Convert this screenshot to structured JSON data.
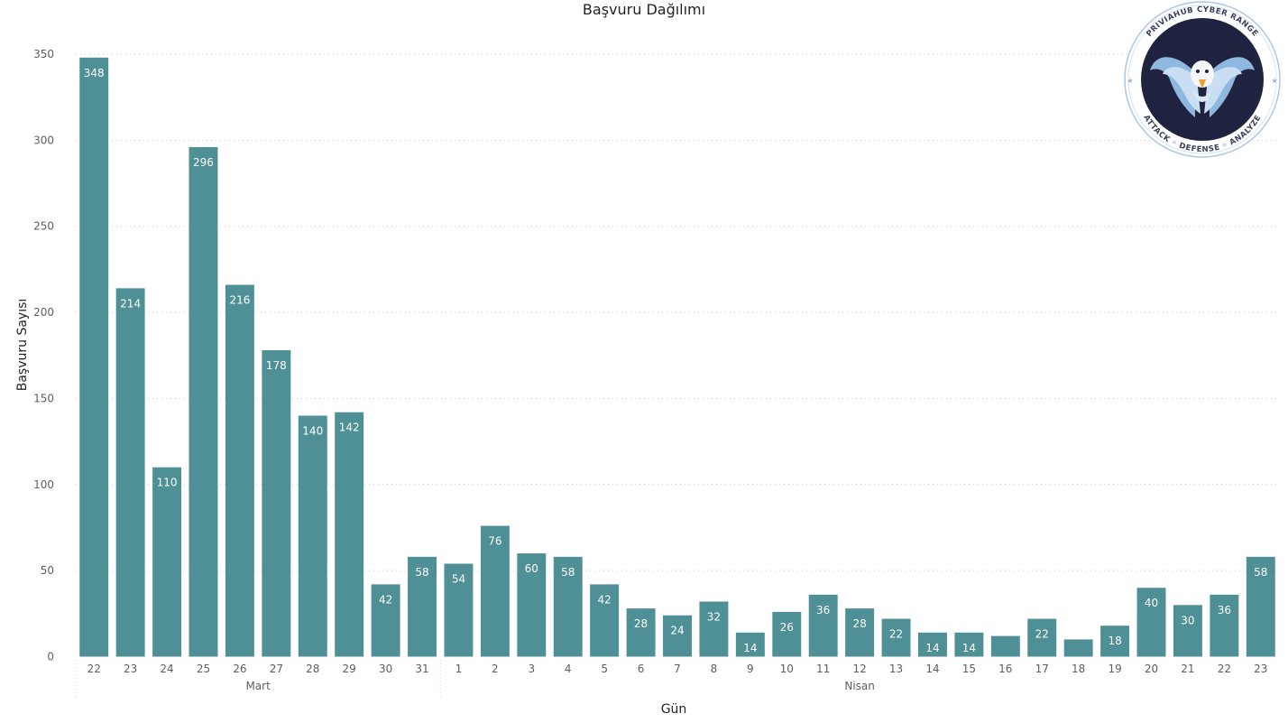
{
  "chart_data": {
    "type": "bar",
    "title": "Başvuru Dağılımı",
    "xlabel": "Gün",
    "ylabel": "Başvuru Sayısı",
    "ylim": [
      0,
      350
    ],
    "yticks": [
      0,
      50,
      100,
      150,
      200,
      250,
      300,
      350
    ],
    "grid": true,
    "bar_color": "#4e9095",
    "groups": [
      {
        "name": "Mart",
        "start": 0,
        "end": 9
      },
      {
        "name": "Nisan",
        "start": 10,
        "end": 32
      }
    ],
    "categories": [
      "22",
      "23",
      "24",
      "25",
      "26",
      "27",
      "28",
      "29",
      "30",
      "31",
      "1",
      "2",
      "3",
      "4",
      "5",
      "6",
      "7",
      "8",
      "9",
      "10",
      "11",
      "12",
      "13",
      "14",
      "15",
      "16",
      "17",
      "18",
      "19",
      "20",
      "21",
      "22",
      "23"
    ],
    "values": [
      348,
      214,
      110,
      296,
      216,
      178,
      140,
      142,
      42,
      58,
      54,
      76,
      60,
      58,
      42,
      28,
      24,
      32,
      14,
      26,
      36,
      28,
      22,
      14,
      14,
      12,
      22,
      10,
      18,
      40,
      30,
      36,
      58
    ],
    "data_labels": [
      "348",
      "214",
      "110",
      "296",
      "216",
      "178",
      "140",
      "142",
      "42",
      "58",
      "54",
      "76",
      "60",
      "58",
      "42",
      "28",
      "24",
      "32",
      "14",
      "26",
      "36",
      "28",
      "22",
      "14",
      "14",
      "",
      "22",
      "",
      "18",
      "40",
      "30",
      "36",
      "58"
    ]
  },
  "logo": {
    "top_text": "PRIVIAHUB CYBER RANGE",
    "bottom_text": "ATTACK ◦ DEFENSE ◦ ANALYZE",
    "icon": "eagle-icon"
  }
}
